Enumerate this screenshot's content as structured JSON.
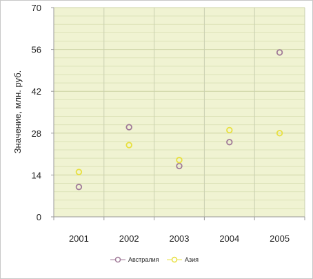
{
  "chart_data": {
    "type": "scatter",
    "title": "",
    "xlabel": "",
    "ylabel": "Значение, млн. руб.",
    "categories": [
      "2001",
      "2002",
      "2003",
      "2004",
      "2005"
    ],
    "ylim": [
      0,
      70
    ],
    "yticks": [
      0,
      14,
      28,
      42,
      56,
      70
    ],
    "grid": true,
    "legend_position": "bottom",
    "series": [
      {
        "name": "Австралия",
        "color": "#a07a98",
        "values": [
          10,
          30,
          17,
          25,
          55
        ]
      },
      {
        "name": "Азия",
        "color": "#e8e040",
        "values": [
          15,
          24,
          19,
          29,
          28
        ]
      }
    ],
    "plot_background": "#f0f3d2",
    "grid_color": "#cfd6a8"
  }
}
